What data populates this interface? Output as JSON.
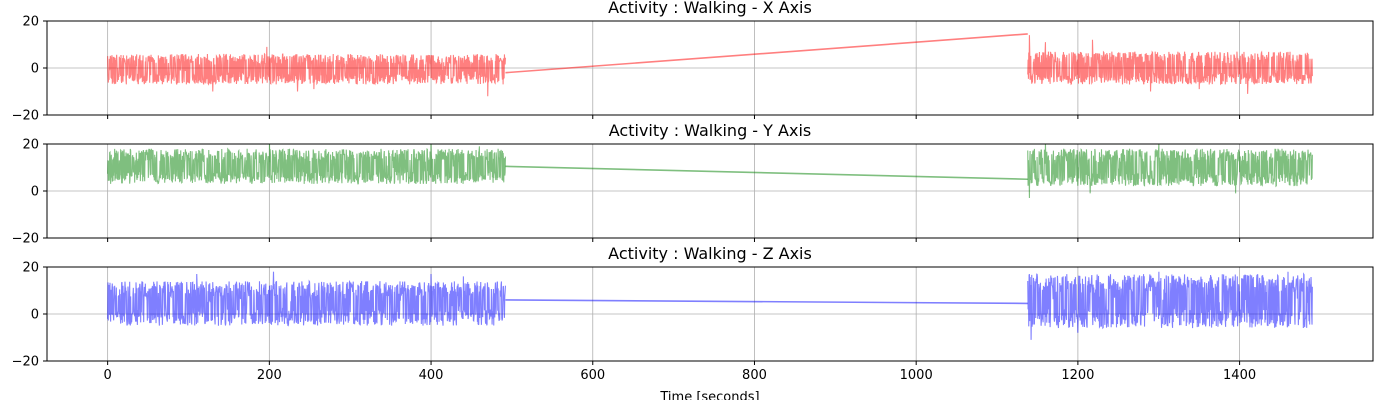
{
  "chart_data": [
    {
      "type": "line",
      "title": "Activity : Walking - X Axis",
      "color": "#ff0000",
      "opacity": 0.5,
      "xlim": [
        -75,
        1565
      ],
      "ylim": [
        -20,
        20
      ],
      "yticks": [
        -20,
        0,
        20
      ],
      "xticks": [
        0,
        200,
        400,
        600,
        800,
        1000,
        1200,
        1400
      ],
      "grid": true,
      "segments": [
        {
          "x_start": 0,
          "x_end": 492,
          "band_low": -7,
          "band_high": 6,
          "spikes": [
            [
              197,
              9
            ],
            [
              130,
              -10
            ],
            [
              235,
              -10
            ],
            [
              470,
              -12
            ],
            [
              255,
              -9
            ]
          ]
        },
        {
          "x_start": 1138,
          "x_end": 1490,
          "band_low": -7,
          "band_high": 7,
          "spikes": [
            [
              1140,
              14
            ],
            [
              1218,
              12
            ],
            [
              1160,
              11
            ],
            [
              1290,
              -10
            ],
            [
              1410,
              -11
            ],
            [
              1350,
              -9
            ]
          ]
        }
      ],
      "connector": [
        [
          492,
          -2
        ],
        [
          1138,
          14.5
        ]
      ]
    },
    {
      "type": "line",
      "title": "Activity : Walking - Y Axis",
      "color": "#008000",
      "opacity": 0.5,
      "xlim": [
        -75,
        1565
      ],
      "ylim": [
        -20,
        20
      ],
      "yticks": [
        -20,
        0,
        20
      ],
      "xticks": [
        0,
        200,
        400,
        600,
        800,
        1000,
        1200,
        1400
      ],
      "grid": true,
      "segments": [
        {
          "x_start": 0,
          "x_end": 492,
          "band_low": 3,
          "band_high": 18,
          "spikes": [
            [
              200,
              20
            ],
            [
              400,
              20
            ],
            [
              460,
              19
            ]
          ]
        },
        {
          "x_start": 1138,
          "x_end": 1490,
          "band_low": 2,
          "band_high": 18,
          "spikes": [
            [
              1140,
              -3
            ],
            [
              1215,
              -1
            ],
            [
              1395,
              -1
            ],
            [
              1160,
              20
            ],
            [
              1300,
              20
            ]
          ]
        }
      ],
      "connector": [
        [
          492,
          10.5
        ],
        [
          1138,
          5
        ]
      ]
    },
    {
      "type": "line",
      "title": "Activity : Walking - Z Axis",
      "color": "#0000ff",
      "opacity": 0.5,
      "xlim": [
        -75,
        1565
      ],
      "ylim": [
        -20,
        20
      ],
      "yticks": [
        -20,
        0,
        20
      ],
      "xticks": [
        0,
        200,
        400,
        600,
        800,
        1000,
        1200,
        1400
      ],
      "xlabel": "Time [seconds]",
      "grid": true,
      "segments": [
        {
          "x_start": 0,
          "x_end": 492,
          "band_low": -5,
          "band_high": 14,
          "spikes": [
            [
              110,
              17
            ],
            [
              205,
              18
            ],
            [
              400,
              17
            ],
            [
              440,
              16
            ]
          ]
        },
        {
          "x_start": 1138,
          "x_end": 1490,
          "band_low": -6,
          "band_high": 17,
          "spikes": [
            [
              1142,
              -11
            ],
            [
              1200,
              -8
            ],
            [
              1300,
              18
            ],
            [
              1460,
              18
            ]
          ]
        }
      ],
      "connector": [
        [
          492,
          6
        ],
        [
          1138,
          4.5
        ]
      ]
    }
  ]
}
